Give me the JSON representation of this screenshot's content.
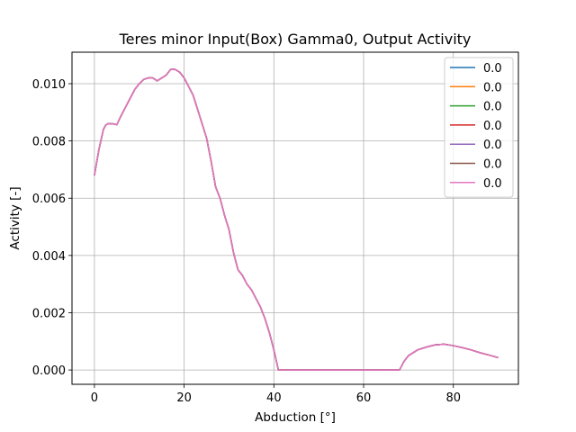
{
  "chart_data": {
    "type": "line",
    "title": "Teres minor Input(Box) Gamma0, Output Activity",
    "xlabel": "Abduction [°]",
    "ylabel": "Activity [-]",
    "xlim": [
      -5,
      94.5
    ],
    "ylim": [
      -0.0005,
      0.0111
    ],
    "xticks": [
      0,
      20,
      40,
      60,
      80
    ],
    "xtick_labels": [
      "0",
      "20",
      "40",
      "60",
      "80"
    ],
    "yticks": [
      0,
      0.002,
      0.004,
      0.006,
      0.008,
      0.01
    ],
    "ytick_labels": [
      "0.000",
      "0.002",
      "0.004",
      "0.006",
      "0.008",
      "0.010"
    ],
    "grid": true,
    "legend_position": "top-right",
    "x": [
      0,
      1,
      2,
      2.5,
      3,
      4,
      5,
      6,
      7,
      8,
      9,
      10,
      11,
      12,
      13,
      14,
      15,
      16,
      17,
      18,
      19,
      20,
      21,
      22,
      23,
      24,
      25,
      26,
      27,
      28,
      29,
      30,
      31,
      32,
      33,
      34,
      35,
      36,
      37,
      38,
      39,
      40,
      41,
      45,
      50,
      55,
      60,
      65,
      68,
      69,
      70,
      72,
      74,
      76,
      78,
      80,
      82,
      84,
      86,
      88,
      90
    ],
    "series": [
      {
        "name": "0.0",
        "color": "#1f77b4",
        "values": [
          0.0068,
          0.0077,
          0.0084,
          0.00855,
          0.0086,
          0.0086,
          0.00857,
          0.0089,
          0.0092,
          0.0095,
          0.0098,
          0.01,
          0.01015,
          0.0102,
          0.0102,
          0.0101,
          0.0102,
          0.0103,
          0.0105,
          0.0105,
          0.0104,
          0.0102,
          0.0099,
          0.0096,
          0.0091,
          0.0086,
          0.0081,
          0.0073,
          0.0064,
          0.006,
          0.0054,
          0.0049,
          0.0041,
          0.0035,
          0.0033,
          0.003,
          0.0028,
          0.0025,
          0.0022,
          0.0018,
          0.0013,
          0.0007,
          0.0,
          0.0,
          0.0,
          0.0,
          0.0,
          0.0,
          0.0,
          0.0003,
          0.0005,
          0.0007,
          0.0008,
          0.00088,
          0.0009,
          0.00085,
          0.00078,
          0.0007,
          0.0006,
          0.00052,
          0.00043
        ]
      },
      {
        "name": "0.0",
        "color": "#ff7f0e",
        "values": [
          0.0068,
          0.0077,
          0.0084,
          0.00855,
          0.0086,
          0.0086,
          0.00857,
          0.0089,
          0.0092,
          0.0095,
          0.0098,
          0.01,
          0.01015,
          0.0102,
          0.0102,
          0.0101,
          0.0102,
          0.0103,
          0.0105,
          0.0105,
          0.0104,
          0.0102,
          0.0099,
          0.0096,
          0.0091,
          0.0086,
          0.0081,
          0.0073,
          0.0064,
          0.006,
          0.0054,
          0.0049,
          0.0041,
          0.0035,
          0.0033,
          0.003,
          0.0028,
          0.0025,
          0.0022,
          0.0018,
          0.0013,
          0.0007,
          0.0,
          0.0,
          0.0,
          0.0,
          0.0,
          0.0,
          0.0,
          0.0003,
          0.0005,
          0.0007,
          0.0008,
          0.00088,
          0.0009,
          0.00085,
          0.00078,
          0.0007,
          0.0006,
          0.00052,
          0.00043
        ]
      },
      {
        "name": "0.0",
        "color": "#2ca02c",
        "values": [
          0.0068,
          0.0077,
          0.0084,
          0.00855,
          0.0086,
          0.0086,
          0.00857,
          0.0089,
          0.0092,
          0.0095,
          0.0098,
          0.01,
          0.01015,
          0.0102,
          0.0102,
          0.0101,
          0.0102,
          0.0103,
          0.0105,
          0.0105,
          0.0104,
          0.0102,
          0.0099,
          0.0096,
          0.0091,
          0.0086,
          0.0081,
          0.0073,
          0.0064,
          0.006,
          0.0054,
          0.0049,
          0.0041,
          0.0035,
          0.0033,
          0.003,
          0.0028,
          0.0025,
          0.0022,
          0.0018,
          0.0013,
          0.0007,
          0.0,
          0.0,
          0.0,
          0.0,
          0.0,
          0.0,
          0.0,
          0.0003,
          0.0005,
          0.0007,
          0.0008,
          0.00088,
          0.0009,
          0.00085,
          0.00078,
          0.0007,
          0.0006,
          0.00052,
          0.00043
        ]
      },
      {
        "name": "0.0",
        "color": "#d62728",
        "values": [
          0.0068,
          0.0077,
          0.0084,
          0.00855,
          0.0086,
          0.0086,
          0.00857,
          0.0089,
          0.0092,
          0.0095,
          0.0098,
          0.01,
          0.01015,
          0.0102,
          0.0102,
          0.0101,
          0.0102,
          0.0103,
          0.0105,
          0.0105,
          0.0104,
          0.0102,
          0.0099,
          0.0096,
          0.0091,
          0.0086,
          0.0081,
          0.0073,
          0.0064,
          0.006,
          0.0054,
          0.0049,
          0.0041,
          0.0035,
          0.0033,
          0.003,
          0.0028,
          0.0025,
          0.0022,
          0.0018,
          0.0013,
          0.0007,
          0.0,
          0.0,
          0.0,
          0.0,
          0.0,
          0.0,
          0.0,
          0.0003,
          0.0005,
          0.0007,
          0.0008,
          0.00088,
          0.0009,
          0.00085,
          0.00078,
          0.0007,
          0.0006,
          0.00052,
          0.00043
        ]
      },
      {
        "name": "0.0",
        "color": "#9467bd",
        "values": [
          0.0068,
          0.0077,
          0.0084,
          0.00855,
          0.0086,
          0.0086,
          0.00857,
          0.0089,
          0.0092,
          0.0095,
          0.0098,
          0.01,
          0.01015,
          0.0102,
          0.0102,
          0.0101,
          0.0102,
          0.0103,
          0.0105,
          0.0105,
          0.0104,
          0.0102,
          0.0099,
          0.0096,
          0.0091,
          0.0086,
          0.0081,
          0.0073,
          0.0064,
          0.006,
          0.0054,
          0.0049,
          0.0041,
          0.0035,
          0.0033,
          0.003,
          0.0028,
          0.0025,
          0.0022,
          0.0018,
          0.0013,
          0.0007,
          0.0,
          0.0,
          0.0,
          0.0,
          0.0,
          0.0,
          0.0,
          0.0003,
          0.0005,
          0.0007,
          0.0008,
          0.00088,
          0.0009,
          0.00085,
          0.00078,
          0.0007,
          0.0006,
          0.00052,
          0.00043
        ]
      },
      {
        "name": "0.0",
        "color": "#8c564b",
        "values": [
          0.0068,
          0.0077,
          0.0084,
          0.00855,
          0.0086,
          0.0086,
          0.00857,
          0.0089,
          0.0092,
          0.0095,
          0.0098,
          0.01,
          0.01015,
          0.0102,
          0.0102,
          0.0101,
          0.0102,
          0.0103,
          0.0105,
          0.0105,
          0.0104,
          0.0102,
          0.0099,
          0.0096,
          0.0091,
          0.0086,
          0.0081,
          0.0073,
          0.0064,
          0.006,
          0.0054,
          0.0049,
          0.0041,
          0.0035,
          0.0033,
          0.003,
          0.0028,
          0.0025,
          0.0022,
          0.0018,
          0.0013,
          0.0007,
          0.0,
          0.0,
          0.0,
          0.0,
          0.0,
          0.0,
          0.0,
          0.0003,
          0.0005,
          0.0007,
          0.0008,
          0.00088,
          0.0009,
          0.00085,
          0.00078,
          0.0007,
          0.0006,
          0.00052,
          0.00043
        ]
      },
      {
        "name": "0.0",
        "color": "#e377c2",
        "values": [
          0.0068,
          0.0077,
          0.0084,
          0.00855,
          0.0086,
          0.0086,
          0.00857,
          0.0089,
          0.0092,
          0.0095,
          0.0098,
          0.01,
          0.01015,
          0.0102,
          0.0102,
          0.0101,
          0.0102,
          0.0103,
          0.0105,
          0.0105,
          0.0104,
          0.0102,
          0.0099,
          0.0096,
          0.0091,
          0.0086,
          0.0081,
          0.0073,
          0.0064,
          0.006,
          0.0054,
          0.0049,
          0.0041,
          0.0035,
          0.0033,
          0.003,
          0.0028,
          0.0025,
          0.0022,
          0.0018,
          0.0013,
          0.0007,
          0.0,
          0.0,
          0.0,
          0.0,
          0.0,
          0.0,
          0.0,
          0.0003,
          0.0005,
          0.0007,
          0.0008,
          0.00088,
          0.0009,
          0.00085,
          0.00078,
          0.0007,
          0.0006,
          0.00052,
          0.00043
        ]
      }
    ]
  }
}
